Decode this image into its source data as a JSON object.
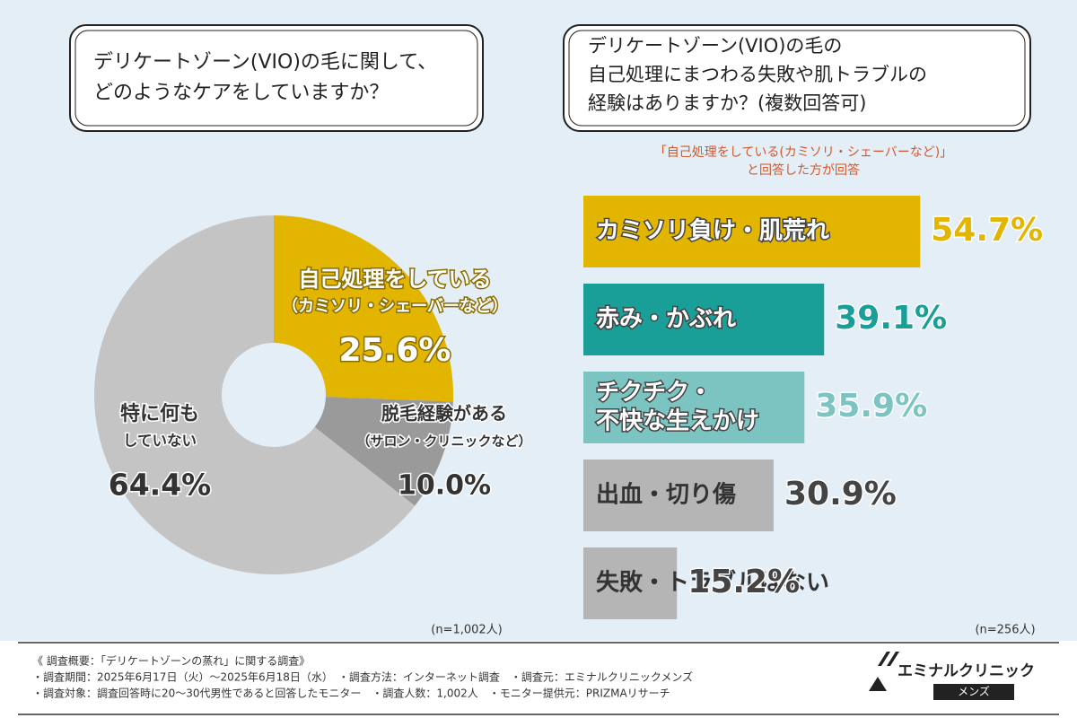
{
  "chart_data": [
    {
      "type": "pie",
      "title": [
        "デリケートゾーン(VIO)の毛に関して、",
        "どのようなケアをしていますか？"
      ],
      "categories": [
        [
          "自己処理をしている",
          "（カミソリ・シェーバーなど）"
        ],
        [
          "脱毛経験がある",
          "（サロン・クリニックなど）"
        ],
        [
          "特に何も",
          "していない"
        ]
      ],
      "values": [
        25.6,
        10.0,
        64.4
      ],
      "value_labels": [
        "25.6%",
        "10.0%",
        "64.4%"
      ],
      "colors": [
        "#e1b500",
        "#9a9a9a",
        "#c4c4c4"
      ],
      "sample": "(n=1,002人)"
    },
    {
      "type": "bar",
      "orientation": "horizontal",
      "title": [
        "デリケートゾーン(VIO)の毛の",
        "自己処理にまつわる失敗や肌トラブルの",
        "経験はありますか？(複数回答可)"
      ],
      "note": [
        "「自己処理をしている(カミソリ・シェーバーなど)」",
        "と回答した方が回答"
      ],
      "categories": [
        [
          "カミソリ負け・肌荒れ"
        ],
        [
          "赤み・かぶれ"
        ],
        [
          "チクチク・",
          "不快な生えかけ"
        ],
        [
          "出血・切り傷"
        ],
        [
          "失敗・トラブルはない"
        ]
      ],
      "values": [
        54.7,
        39.1,
        35.9,
        30.9,
        15.2
      ],
      "value_labels": [
        "54.7%",
        "39.1%",
        "35.9%",
        "30.9%",
        "15.2%"
      ],
      "colors": [
        "#e1b500",
        "#1a9e98",
        "#7cc4c2",
        "#b5b5b5",
        "#b5b5b5"
      ],
      "xlim": [
        0,
        100
      ],
      "sample": "(n=256人)"
    }
  ],
  "footer": {
    "lines": [
      "《 調査概要：「デリケートゾーンの蒸れ」に関する調査》",
      "・調査期間：2025年6月17日（火）～2025年6月18日（水）　・調査方法：インターネット調査　・調査元：エミナルクリニックメンズ",
      "・調査対象：調査回答時に20～30代男性であると回答したモニター　・調査人数：1,002人　・モニター提供元：PRIZMAリサーチ"
    ],
    "logo": "エミナルクリニック",
    "logo_sub": "メンズ"
  }
}
